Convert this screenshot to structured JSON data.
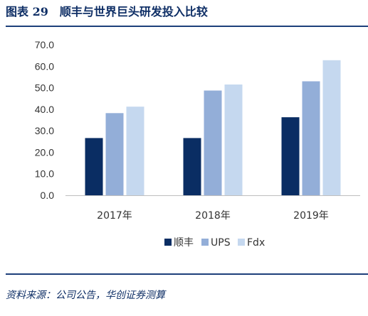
{
  "figure_title": "图表 29　顺丰与世界巨头研发投入比较",
  "source_note": "资料来源：公司公告，华创证券测算",
  "colors": {
    "title": "#0f2f66",
    "rule": "#1d3f7a",
    "series_1": "#0a2d63",
    "series_2": "#93aed8",
    "series_3": "#c5d8ef"
  },
  "chart_data": {
    "type": "bar",
    "title": "",
    "xlabel": "",
    "ylabel": "",
    "categories": [
      "2017年",
      "2018年",
      "2019年"
    ],
    "series": [
      {
        "name": "顺丰",
        "values": [
          26.6,
          26.6,
          36.3
        ]
      },
      {
        "name": "UPS",
        "values": [
          38.2,
          48.7,
          53.0
        ]
      },
      {
        "name": "Fdx",
        "values": [
          41.2,
          51.5,
          62.8
        ]
      }
    ],
    "ylim": [
      0,
      70
    ],
    "yticks": [
      "0.0",
      "10.0",
      "20.0",
      "30.0",
      "40.0",
      "50.0",
      "60.0",
      "70.0"
    ],
    "grid": false,
    "legend_position": "bottom"
  }
}
